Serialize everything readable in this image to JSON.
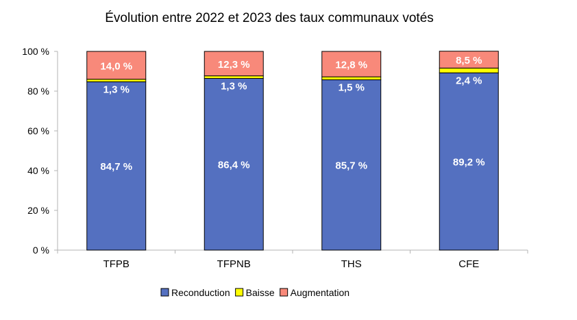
{
  "chart_data": {
    "type": "bar",
    "stacked": true,
    "title": "Évolution entre 2022 et 2023 des taux communaux votés",
    "categories": [
      "TFPB",
      "TFPNB",
      "THS",
      "CFE"
    ],
    "series": [
      {
        "name": "Reconduction",
        "color": "#5470c0",
        "values": [
          84.7,
          86.4,
          85.7,
          89.2
        ],
        "labels": [
          "84,7 %",
          "86,4 %",
          "85,7 %",
          "89,2 %"
        ]
      },
      {
        "name": "Baisse",
        "color": "#ffff00",
        "values": [
          1.3,
          1.3,
          1.5,
          2.4
        ],
        "labels": [
          "1,3 %",
          "1,3 %",
          "1,5 %",
          "2,4 %"
        ]
      },
      {
        "name": "Augmentation",
        "color": "#f8897a",
        "values": [
          14.0,
          12.3,
          12.8,
          8.5
        ],
        "labels": [
          "14,0 %",
          "12,3 %",
          "12,8 %",
          "8,5 %"
        ]
      }
    ],
    "ylim": [
      0,
      100
    ],
    "yticks": [
      0,
      20,
      40,
      60,
      80,
      100
    ],
    "ytick_labels": [
      "0 %",
      "20 %",
      "40 %",
      "60 %",
      "80 %",
      "100 %"
    ],
    "grid": false,
    "legend": "bottom"
  }
}
